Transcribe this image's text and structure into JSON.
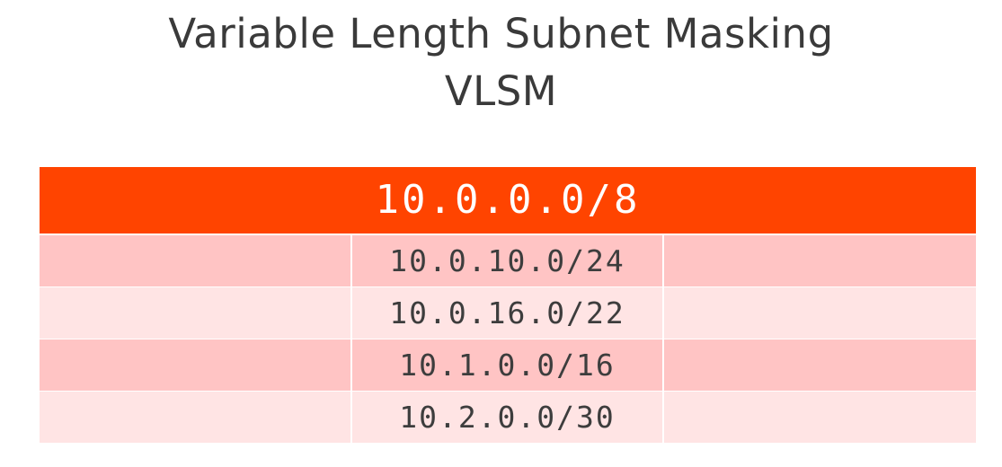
{
  "slide": {
    "title_line1": "Variable Length Subnet Masking",
    "title_line2": "VLSM"
  },
  "table": {
    "header": "10.0.0.0/8",
    "header_color": "#ff4400",
    "row_colors": [
      "#ffc4c4",
      "#ffe4e4"
    ],
    "rows": [
      {
        "subnet": "10.0.10.0/24"
      },
      {
        "subnet": "10.0.16.0/22"
      },
      {
        "subnet": "10.1.0.0/16"
      },
      {
        "subnet": "10.2.0.0/30"
      }
    ]
  }
}
